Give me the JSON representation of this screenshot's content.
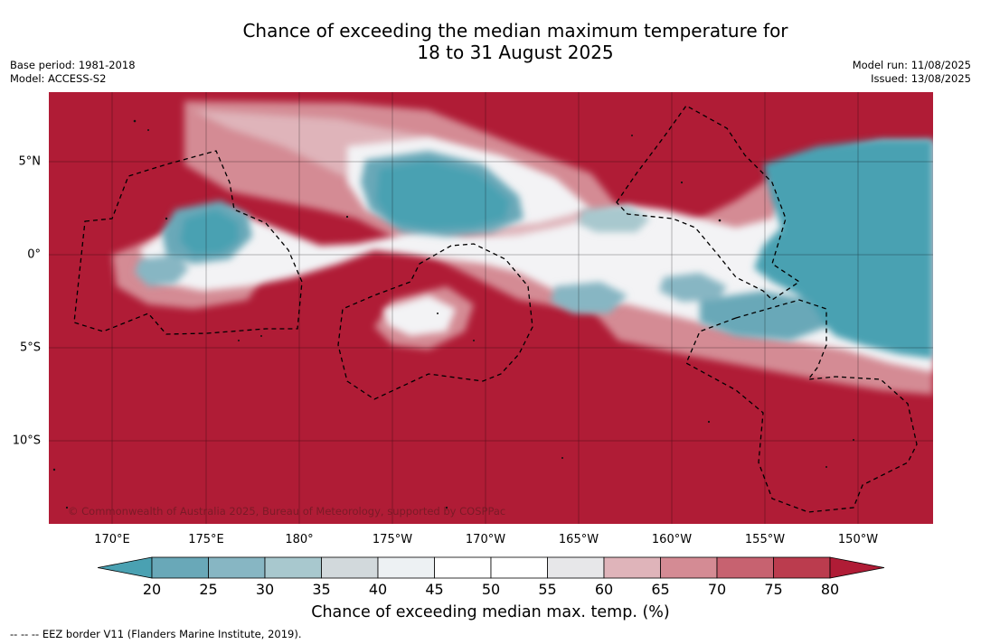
{
  "title": {
    "line1": "Chance of exceeding the median maximum temperature for",
    "line2": "18 to 31 August 2025"
  },
  "meta": {
    "base_period": "Base period: 1981-2018",
    "model": "Model: ACCESS-S2",
    "model_run": "Model run: 11/08/2025",
    "issued": "Issued: 13/08/2025"
  },
  "map": {
    "lon_labels": [
      "170°E",
      "175°E",
      "180°",
      "175°W",
      "170°W",
      "165°W",
      "160°W",
      "155°W",
      "150°W"
    ],
    "lat_labels": [
      "5°N",
      "0°",
      "5°S",
      "10°S"
    ],
    "copyright": "© Commonwealth of Australia 2025, Bureau of Meteorology, supported by COSPPac",
    "colors": {
      "high": "#b01c36",
      "low": "#4aa1b2",
      "mid": "#ffffff"
    }
  },
  "colorbar": {
    "labels": [
      "20",
      "25",
      "30",
      "35",
      "40",
      "45",
      "50",
      "55",
      "60",
      "65",
      "70",
      "75",
      "80"
    ],
    "colors": [
      "#4aa1b2",
      "#69a8b8",
      "#87b6c3",
      "#a8c8ce",
      "#d2d9dc",
      "#edf1f3",
      "#ffffff",
      "#ffffff",
      "#e7e7e9",
      "#dfb4ba",
      "#d48b94",
      "#c76270",
      "#bb3c4e",
      "#b01c36"
    ],
    "title": "Chance of exceeding median max. temp. (%)"
  },
  "footer": "--  --  -- EEZ border V11 (Flanders Marine Institute, 2019)."
}
